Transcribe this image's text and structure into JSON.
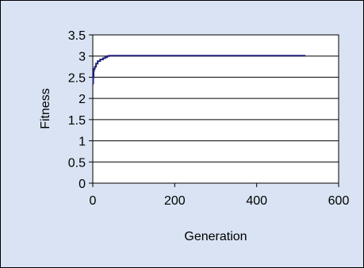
{
  "chart_data": {
    "type": "line",
    "title": "",
    "xlabel": "Generation",
    "ylabel": "Fitness",
    "xlim": [
      0,
      600
    ],
    "ylim": [
      0,
      3.5
    ],
    "x_ticks": [
      "0",
      "200",
      "400",
      "600"
    ],
    "y_ticks": [
      "0",
      "0.5",
      "1",
      "1.5",
      "2",
      "2.5",
      "3",
      "3.5"
    ],
    "grid": "horizontal",
    "legend": "none",
    "series": [
      {
        "color": "#1f1f7a",
        "step": true,
        "x": [
          0,
          1,
          2,
          3,
          5,
          8,
          12,
          18,
          25,
          30,
          35,
          40,
          60,
          100,
          200,
          300,
          400,
          519
        ],
        "y": [
          2.35,
          2.5,
          2.65,
          2.7,
          2.75,
          2.82,
          2.88,
          2.92,
          2.95,
          2.97,
          3.0,
          3.01,
          3.01,
          3.01,
          3.01,
          3.01,
          3.01,
          3.01
        ]
      }
    ]
  },
  "colors": {
    "frame_background": "#d9e3f3",
    "plot_background": "#ffffff",
    "gridline": "#000000",
    "series_line": "#1f1f7a"
  }
}
